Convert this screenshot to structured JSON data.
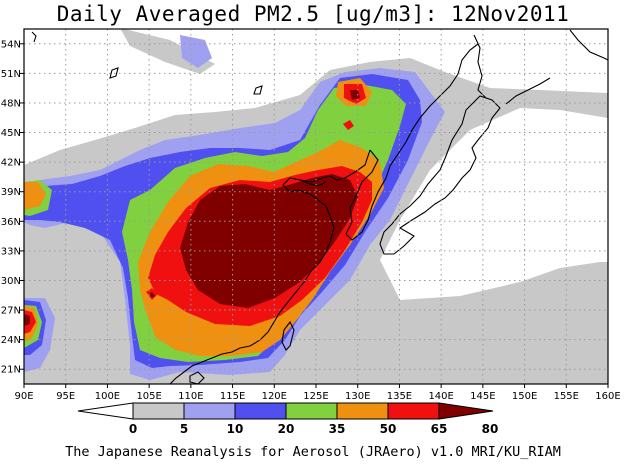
{
  "title": "Daily Averaged PM2.5 [ug/m3]: 12Nov2011",
  "credit": "The Japanese Reanalysis for Aerosol (JRAero) v1.0 MRI/KU_RIAM",
  "map": {
    "lon_range": [
      90,
      160
    ],
    "lat_range": [
      19.5,
      55.5
    ],
    "lon_labels": [
      "90E",
      "95E",
      "100E",
      "105E",
      "110E",
      "115E",
      "120E",
      "125E",
      "130E",
      "135E",
      "140E",
      "145E",
      "150E",
      "155E",
      "160E"
    ],
    "lat_labels": [
      "21N",
      "24N",
      "27N",
      "30N",
      "33N",
      "36N",
      "39N",
      "42N",
      "45N",
      "48N",
      "51N",
      "54N"
    ],
    "grid": true
  },
  "colorbar": {
    "levels": [
      "0",
      "5",
      "10",
      "20",
      "35",
      "50",
      "65",
      "80"
    ],
    "colors": [
      "#ffffff",
      "#c8c8c8",
      "#a0a0f0",
      "#5050f0",
      "#80d040",
      "#f09010",
      "#f01010",
      "#800000"
    ]
  }
}
